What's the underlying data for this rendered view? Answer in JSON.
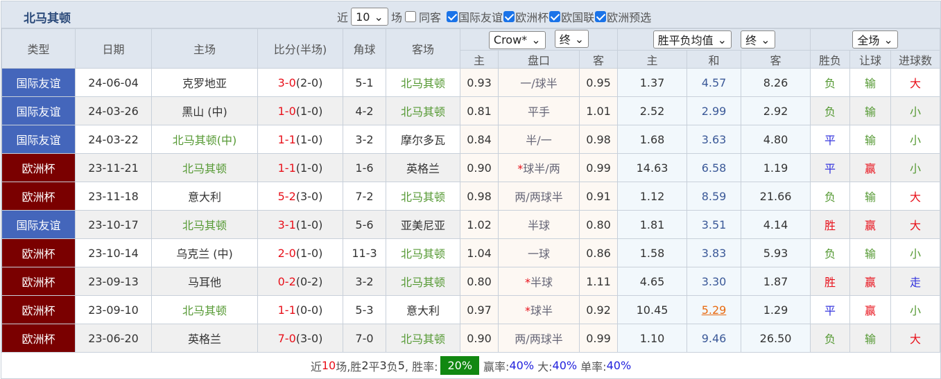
{
  "header": {
    "team": "北马其顿",
    "near": "近",
    "count": "10",
    "unit": "场",
    "same_label": "同客",
    "same_checked": false,
    "leagues": [
      {
        "label": "国际友谊",
        "checked": true
      },
      {
        "label": "欧洲杯",
        "checked": true
      },
      {
        "label": "欧国联",
        "checked": true
      },
      {
        "label": "欧洲预选",
        "checked": true
      }
    ]
  },
  "columns": {
    "type": "类型",
    "date": "日期",
    "home": "主场",
    "score": "比分(半场)",
    "corner": "角球",
    "away": "客场",
    "company": "Crow*",
    "final1": "终",
    "avg": "胜平负均值",
    "final2": "终",
    "scope": "全场",
    "sub": [
      "主",
      "盘口",
      "客",
      "主",
      "和",
      "客",
      "胜负",
      "让球",
      "进球数"
    ]
  },
  "colors": {
    "friendly": "#4466bb",
    "euro": "#7a0000",
    "team": "#559933",
    "win": "#e8101a",
    "draw_odds": "#3b5998",
    "highlight": "#e86a10",
    "green_badge": "#118811"
  },
  "rows": [
    {
      "type": "国际友谊",
      "kind": "friendly",
      "date": "24-06-04",
      "home": "克罗地亚",
      "score": "3-0",
      "half": "(2-0)",
      "corner": "5-1",
      "away": "北马其顿",
      "o1": "0.93",
      "pk": "一/球半",
      "star": false,
      "o2": "0.95",
      "h": "1.37",
      "d": "4.57",
      "a": "8.26",
      "wl": "负",
      "hc": "输",
      "ou": "大"
    },
    {
      "type": "国际友谊",
      "kind": "friendly",
      "date": "24-03-26",
      "home": "黑山 (中)",
      "score": "1-0",
      "half": "(1-0)",
      "corner": "4-2",
      "away": "北马其顿",
      "o1": "0.81",
      "pk": "平手",
      "star": false,
      "o2": "1.01",
      "h": "2.52",
      "d": "2.99",
      "a": "2.92",
      "wl": "负",
      "hc": "输",
      "ou": "小"
    },
    {
      "type": "国际友谊",
      "kind": "friendly",
      "date": "24-03-22",
      "home": "北马其顿(中)",
      "score": "1-1",
      "half": "(1-0)",
      "corner": "3-2",
      "away": "摩尔多瓦",
      "o1": "0.84",
      "pk": "半/一",
      "star": false,
      "o2": "0.98",
      "h": "1.68",
      "d": "3.63",
      "a": "4.80",
      "wl": "平",
      "hc": "输",
      "ou": "小"
    },
    {
      "type": "欧洲杯",
      "kind": "euro",
      "date": "23-11-21",
      "home": "北马其顿",
      "score": "1-1",
      "half": "(1-0)",
      "corner": "1-6",
      "away": "英格兰",
      "o1": "0.90",
      "pk": "球半/两",
      "star": true,
      "o2": "0.99",
      "h": "14.63",
      "d": "6.58",
      "a": "1.19",
      "wl": "平",
      "hc": "赢",
      "ou": "小"
    },
    {
      "type": "欧洲杯",
      "kind": "euro",
      "date": "23-11-18",
      "home": "意大利",
      "score": "5-2",
      "half": "(3-0)",
      "corner": "7-2",
      "away": "北马其顿",
      "o1": "0.98",
      "pk": "两/两球半",
      "star": false,
      "o2": "0.91",
      "h": "1.12",
      "d": "8.59",
      "a": "21.66",
      "wl": "负",
      "hc": "输",
      "ou": "大"
    },
    {
      "type": "国际友谊",
      "kind": "friendly",
      "date": "23-10-17",
      "home": "北马其顿",
      "score": "3-1",
      "half": "(1-0)",
      "corner": "5-6",
      "away": "亚美尼亚",
      "o1": "1.02",
      "pk": "半球",
      "star": false,
      "o2": "0.80",
      "h": "1.81",
      "d": "3.51",
      "a": "4.14",
      "wl": "胜",
      "hc": "赢",
      "ou": "大"
    },
    {
      "type": "欧洲杯",
      "kind": "euro",
      "date": "23-10-14",
      "home": "乌克兰 (中)",
      "score": "2-0",
      "half": "(1-0)",
      "corner": "11-3",
      "away": "北马其顿",
      "o1": "1.04",
      "pk": "一球",
      "star": false,
      "o2": "0.86",
      "h": "1.58",
      "d": "3.83",
      "a": "5.93",
      "wl": "负",
      "hc": "输",
      "ou": "小"
    },
    {
      "type": "欧洲杯",
      "kind": "euro",
      "date": "23-09-13",
      "home": "马耳他",
      "score": "0-2",
      "half": "(0-2)",
      "corner": "3-2",
      "away": "北马其顿",
      "o1": "0.80",
      "pk": "半球",
      "star": true,
      "o2": "1.11",
      "h": "4.65",
      "d": "3.30",
      "a": "1.87",
      "wl": "胜",
      "hc": "赢",
      "ou": "走"
    },
    {
      "type": "欧洲杯",
      "kind": "euro",
      "date": "23-09-10",
      "home": "北马其顿",
      "score": "1-1",
      "half": "(0-0)",
      "corner": "5-3",
      "away": "意大利",
      "o1": "0.97",
      "pk": "球半",
      "star": true,
      "o2": "0.92",
      "h": "10.45",
      "d": "5.29",
      "dHighlight": true,
      "a": "1.29",
      "wl": "平",
      "hc": "赢",
      "ou": "小"
    },
    {
      "type": "欧洲杯",
      "kind": "euro",
      "date": "23-06-20",
      "home": "英格兰",
      "score": "7-0",
      "half": "(3-0)",
      "corner": "7-0",
      "away": "北马其顿",
      "o1": "0.90",
      "pk": "两/两球半",
      "star": false,
      "o2": "0.99",
      "h": "1.10",
      "d": "9.46",
      "a": "26.50",
      "wl": "负",
      "hc": "输",
      "ou": "大"
    }
  ],
  "footer": {
    "near": "近",
    "n": "10",
    "t1": "场,胜",
    "w": "2",
    "t2": "平",
    "dr": "3",
    "t3": "负",
    "l": "5",
    "t4": ", 胜率:",
    "winrate": "20%",
    "t5": "赢率:",
    "hcrate": "40%",
    "t6": "大:",
    "big": "40%",
    "t7": "单率:",
    "odd": "40%"
  }
}
